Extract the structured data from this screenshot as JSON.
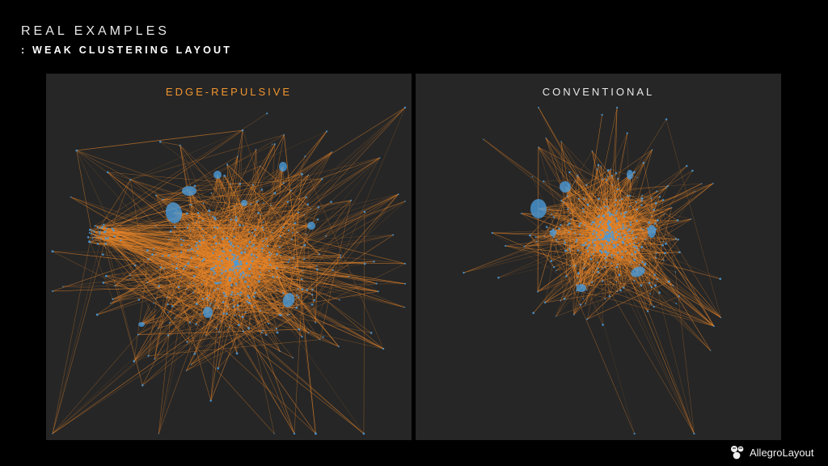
{
  "header": {
    "title": "REAL EXAMPLES",
    "subtitle": ": WEAK CLUSTERING LAYOUT"
  },
  "panels": {
    "left": {
      "label": "EDGE-REPULSIVE"
    },
    "right": {
      "label": "CONVENTIONAL"
    }
  },
  "brand": {
    "name": "AllegroLayout",
    "icon": "puzzle-logo-icon"
  },
  "colors": {
    "background": "#000000",
    "panel": "#262626",
    "edge": "#e8862a",
    "node": "#4a9ad8",
    "accent_label": "#f2952f"
  }
}
